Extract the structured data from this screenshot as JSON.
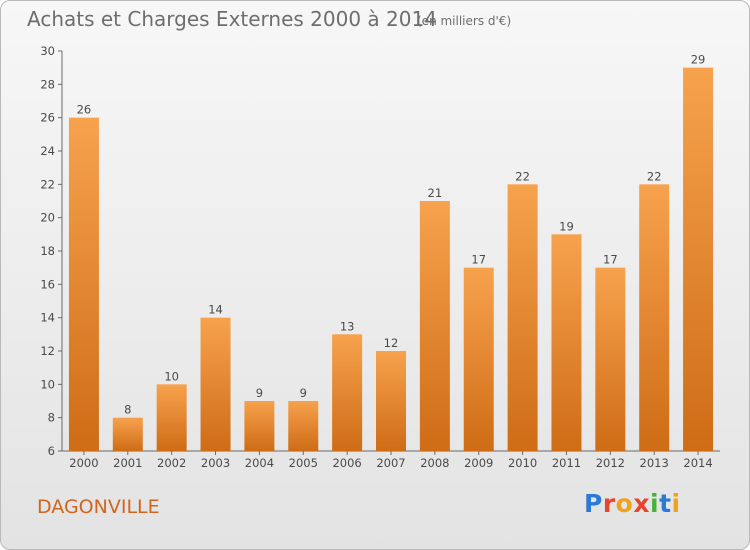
{
  "header": {
    "title": "Achats et Charges Externes 2000 à 2014",
    "unit": "(en milliers d'€)"
  },
  "footer": {
    "town": "DAGONVILLE",
    "logo": "Proxiti"
  },
  "colors": {
    "bar_top": "#f7a24d",
    "bar_bottom": "#cf6c16",
    "accent": "#d2651e",
    "text": "#6e6e6e"
  },
  "chart_data": {
    "type": "bar",
    "title": "Achats et Charges Externes 2000 à 2014",
    "subtitle": "(en milliers d'€)",
    "categories": [
      "2000",
      "2001",
      "2002",
      "2003",
      "2004",
      "2005",
      "2006",
      "2007",
      "2008",
      "2009",
      "2010",
      "2011",
      "2012",
      "2013",
      "2014"
    ],
    "values": [
      26,
      8,
      10,
      14,
      9,
      9,
      13,
      12,
      21,
      17,
      22,
      19,
      17,
      22,
      29
    ],
    "ylim": [
      6,
      30
    ],
    "yticks": [
      6,
      8,
      10,
      12,
      14,
      16,
      18,
      20,
      22,
      24,
      26,
      28,
      30
    ],
    "grid": false,
    "data_labels": true
  }
}
